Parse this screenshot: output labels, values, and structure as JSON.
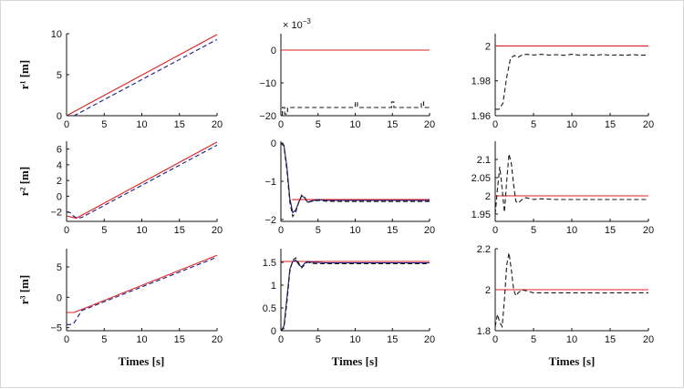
{
  "figure": {
    "xlabel": "Times [s]",
    "row_labels": [
      "r¹ [m]",
      "r² [m]",
      "r³ [m]"
    ],
    "legend": []
  },
  "chart_data": [
    {
      "type": "line",
      "panel": "r1-position",
      "ylabel": "r¹ [m]",
      "xlabel": "",
      "xlim": [
        0,
        20
      ],
      "ylim": [
        0,
        10
      ],
      "xticks": [
        "0",
        "5",
        "10",
        "15",
        "20"
      ],
      "yticks": [
        "0",
        "5",
        "10"
      ],
      "series": [
        {
          "role": "reference",
          "color": "#e02020",
          "style": "solid",
          "x": [
            0,
            20
          ],
          "y": [
            0,
            9.9
          ]
        },
        {
          "role": "actual",
          "color": "#1a1a80",
          "style": "dashed",
          "x": [
            0,
            0.5,
            1,
            20
          ],
          "y": [
            0,
            -0.1,
            0,
            9.3
          ]
        }
      ]
    },
    {
      "type": "line",
      "panel": "r1-middle",
      "exponent_label": "× 10",
      "exponent_power": "−3",
      "xlim": [
        0,
        20
      ],
      "ylim": [
        -20,
        5
      ],
      "xticks": [
        "0",
        "5",
        "10",
        "15",
        "20"
      ],
      "yticks": [
        "−20",
        "−10",
        "0"
      ],
      "series": [
        {
          "role": "reference",
          "color": "#e02020",
          "style": "solid",
          "x": [
            0,
            20
          ],
          "y": [
            0,
            0
          ]
        },
        {
          "role": "actual",
          "color": "#1a1a1a",
          "style": "dashed",
          "x": [
            0.2,
            0.2,
            0.5,
            0.5,
            0.9,
            0.9,
            10,
            10,
            10.3,
            10.3,
            14.9,
            14.9,
            15.2,
            15.2,
            18.9,
            18.9,
            19.2,
            19.2,
            20
          ],
          "y": [
            -20,
            -17.5,
            -17.5,
            -19.5,
            -19.5,
            -17.5,
            -17.5,
            -15.8,
            -15.8,
            -17.5,
            -17.5,
            -15.8,
            -15.8,
            -17.5,
            -17.5,
            -15.8,
            -15.8,
            -17.5,
            -17.5
          ]
        }
      ]
    },
    {
      "type": "line",
      "panel": "r1-right",
      "xlim": [
        0,
        20
      ],
      "ylim": [
        1.96,
        2.007
      ],
      "xticks": [
        "0",
        "5",
        "10",
        "15",
        "20"
      ],
      "yticks": [
        "1.96",
        "1.98",
        "2"
      ],
      "series": [
        {
          "role": "reference",
          "color": "#e02020",
          "style": "solid",
          "x": [
            0,
            20
          ],
          "y": [
            2,
            2
          ]
        },
        {
          "role": "actual",
          "color": "#1a1a1a",
          "style": "dashed",
          "x": [
            0,
            0.5,
            1,
            1.5,
            2,
            2.5,
            3,
            3.5,
            4,
            5,
            6,
            7,
            8,
            9,
            10,
            11,
            12,
            13,
            14,
            15,
            16,
            17,
            18,
            19,
            20
          ],
          "y": [
            1.9637,
            1.9637,
            1.967,
            1.982,
            1.993,
            1.9945,
            1.9935,
            1.9948,
            1.9952,
            1.9948,
            1.9952,
            1.9948,
            1.995,
            1.9946,
            1.9952,
            1.9947,
            1.995,
            1.9946,
            1.9951,
            1.9947,
            1.9949,
            1.9946,
            1.995,
            1.9947,
            1.9948
          ]
        }
      ]
    },
    {
      "type": "line",
      "panel": "r2-position",
      "ylabel": "r² [m]",
      "xlim": [
        0,
        20
      ],
      "ylim": [
        -3.2,
        7
      ],
      "xticks": [
        "0",
        "5",
        "10",
        "15",
        "20"
      ],
      "yticks": [
        "−2",
        "0",
        "2",
        "4",
        "6"
      ],
      "series": [
        {
          "role": "reference",
          "color": "#e02020",
          "style": "solid",
          "x": [
            0,
            1.3,
            20
          ],
          "y": [
            -2.5,
            -2.8,
            6.9
          ]
        },
        {
          "role": "actual",
          "color": "#1a1a80",
          "style": "dashed",
          "x": [
            0,
            0.5,
            1,
            1.5,
            2,
            20
          ],
          "y": [
            -2,
            -2.1,
            -2.6,
            -2.8,
            -2.7,
            6.5
          ]
        }
      ]
    },
    {
      "type": "line",
      "panel": "r2-middle",
      "xlim": [
        0,
        20
      ],
      "ylim": [
        -2.05,
        0.05
      ],
      "xticks": [
        "0",
        "5",
        "10",
        "15",
        "20"
      ],
      "yticks": [
        "−2",
        "−1",
        "0"
      ],
      "series": [
        {
          "role": "reference",
          "color": "#e02020",
          "style": "solid",
          "x": [
            1.5,
            20
          ],
          "y": [
            -1.48,
            -1.48
          ]
        },
        {
          "role": "actual-1",
          "color": "#1a1a80",
          "style": "solid",
          "x": [
            0,
            0.4,
            0.8,
            1.2,
            1.6,
            2,
            2.4,
            2.8,
            3.2,
            3.6,
            4,
            5,
            6,
            8,
            20
          ],
          "y": [
            0,
            -0.05,
            -0.6,
            -1.45,
            -1.82,
            -1.75,
            -1.55,
            -1.38,
            -1.43,
            -1.55,
            -1.52,
            -1.48,
            -1.5,
            -1.5,
            -1.5
          ]
        },
        {
          "role": "actual-2",
          "color": "#1a1a1a",
          "style": "dashed",
          "x": [
            0,
            0.4,
            0.8,
            1.2,
            1.6,
            2,
            2.4,
            2.8,
            3.2,
            3.6,
            4,
            5,
            6,
            8,
            20
          ],
          "y": [
            0,
            -0.08,
            -0.7,
            -1.55,
            -1.92,
            -1.8,
            -1.55,
            -1.36,
            -1.42,
            -1.56,
            -1.53,
            -1.5,
            -1.52,
            -1.53,
            -1.53
          ]
        }
      ]
    },
    {
      "type": "line",
      "panel": "r2-right",
      "xlim": [
        0,
        20
      ],
      "ylim": [
        1.93,
        2.15
      ],
      "xticks": [
        "0",
        "5",
        "10",
        "15",
        "20"
      ],
      "yticks": [
        "1.95",
        "2",
        "2.05",
        "2.1"
      ],
      "series": [
        {
          "role": "reference",
          "color": "#e02020",
          "style": "solid",
          "x": [
            0,
            20
          ],
          "y": [
            2,
            2
          ]
        },
        {
          "role": "actual",
          "color": "#1a1a1a",
          "style": "dashed",
          "x": [
            0,
            0.3,
            0.6,
            0.9,
            1.2,
            1.5,
            1.8,
            2.1,
            2.4,
            2.7,
            3,
            3.5,
            4,
            5,
            6,
            8,
            10,
            12,
            14,
            16,
            18,
            20
          ],
          "y": [
            1.95,
            2.02,
            2.08,
            2.02,
            1.955,
            2.04,
            2.115,
            2.09,
            2.03,
            1.985,
            1.98,
            1.99,
            1.995,
            1.99,
            1.992,
            1.99,
            1.99,
            1.99,
            1.99,
            1.99,
            1.99,
            1.99
          ]
        }
      ]
    },
    {
      "type": "line",
      "panel": "r3-position",
      "ylabel": "r³ [m]",
      "xlim": [
        0,
        20
      ],
      "ylim": [
        -5.5,
        8
      ],
      "xticks": [
        "0",
        "5",
        "10",
        "15",
        "20"
      ],
      "yticks": [
        "−5",
        "0",
        "5"
      ],
      "series": [
        {
          "role": "reference",
          "color": "#e02020",
          "style": "solid",
          "x": [
            0,
            1,
            20
          ],
          "y": [
            -2.5,
            -2.5,
            6.9
          ]
        },
        {
          "role": "actual",
          "color": "#1a1a80",
          "style": "dashed",
          "x": [
            0,
            0.5,
            1,
            1.5,
            2,
            3,
            20
          ],
          "y": [
            -4.5,
            -4.5,
            -4.2,
            -3.2,
            -2.2,
            -1.7,
            6.6
          ]
        }
      ]
    },
    {
      "type": "line",
      "panel": "r3-middle",
      "xlim": [
        0,
        20
      ],
      "ylim": [
        0,
        1.8
      ],
      "xticks": [
        "0",
        "5",
        "10",
        "15",
        "20"
      ],
      "yticks": [
        "0",
        "0.5",
        "1",
        "1.5"
      ],
      "series": [
        {
          "role": "reference",
          "color": "#e02020",
          "style": "solid",
          "x": [
            0,
            20
          ],
          "y": [
            1.52,
            1.52
          ]
        },
        {
          "role": "actual-1",
          "color": "#1a1a80",
          "style": "solid",
          "x": [
            0,
            0.4,
            0.8,
            1.2,
            1.6,
            2,
            2.4,
            2.8,
            3.2,
            3.6,
            4,
            5,
            6,
            8,
            20
          ],
          "y": [
            0,
            0.1,
            0.7,
            1.35,
            1.52,
            1.55,
            1.45,
            1.4,
            1.48,
            1.52,
            1.5,
            1.5,
            1.49,
            1.49,
            1.49
          ]
        },
        {
          "role": "actual-2",
          "color": "#1a1a1a",
          "style": "dashed",
          "x": [
            0,
            0.4,
            0.8,
            1.2,
            1.6,
            2,
            2.4,
            2.8,
            3.2,
            3.6,
            4,
            5,
            6,
            8,
            20
          ],
          "y": [
            0,
            0.05,
            0.6,
            1.3,
            1.55,
            1.6,
            1.48,
            1.38,
            1.45,
            1.51,
            1.48,
            1.47,
            1.47,
            1.47,
            1.47
          ]
        }
      ]
    },
    {
      "type": "line",
      "panel": "r3-right",
      "xlim": [
        0,
        20
      ],
      "ylim": [
        1.8,
        2.2
      ],
      "xticks": [
        "0",
        "5",
        "10",
        "15",
        "20"
      ],
      "yticks": [
        "1.8",
        "2",
        "2.2"
      ],
      "series": [
        {
          "role": "reference",
          "color": "#e02020",
          "style": "solid",
          "x": [
            0,
            20
          ],
          "y": [
            2,
            2
          ]
        },
        {
          "role": "actual",
          "color": "#1a1a1a",
          "style": "dashed",
          "x": [
            0,
            0.3,
            0.6,
            0.9,
            1.2,
            1.5,
            1.8,
            2.1,
            2.4,
            2.7,
            3,
            3.5,
            4,
            5,
            6,
            8,
            10,
            12,
            14,
            16,
            18,
            20
          ],
          "y": [
            1.82,
            1.88,
            1.84,
            1.82,
            1.95,
            2.12,
            2.18,
            2.1,
            2.0,
            1.97,
            1.985,
            2.0,
            1.995,
            1.985,
            1.985,
            1.985,
            1.985,
            1.985,
            1.984,
            1.985,
            1.985,
            1.985
          ]
        }
      ]
    }
  ]
}
